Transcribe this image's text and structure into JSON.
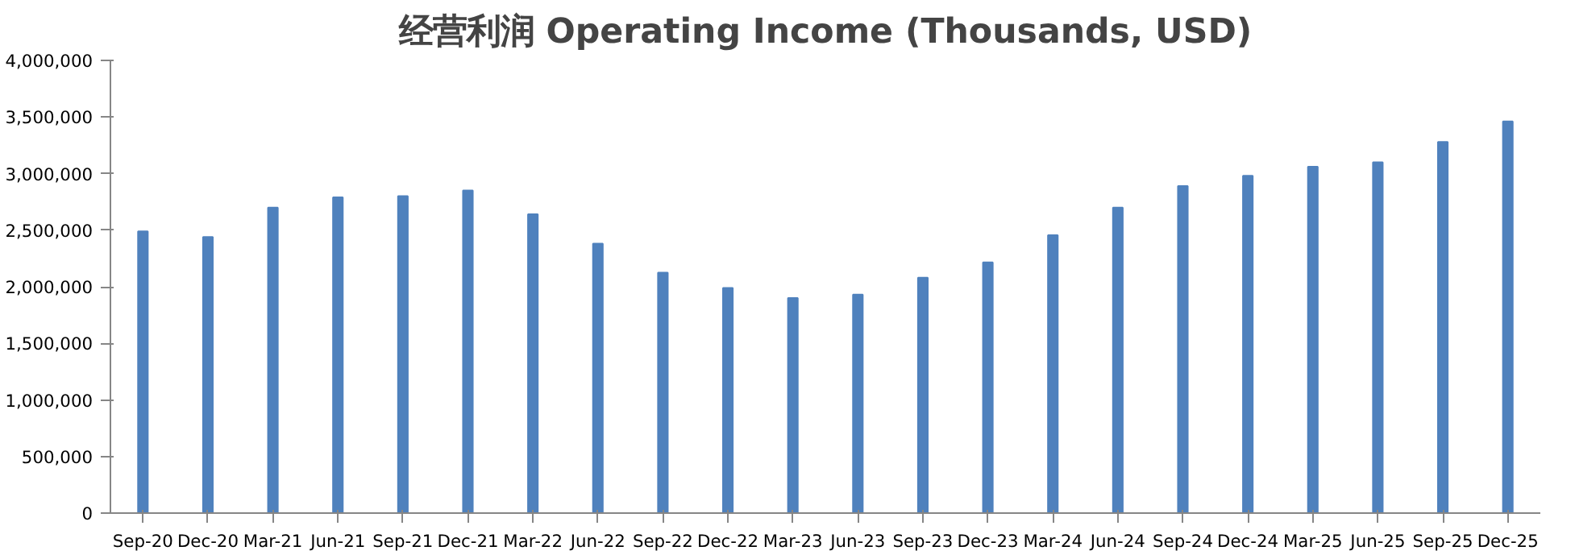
{
  "chart_data": {
    "type": "bar",
    "title": "经营利润 Operating Income (Thousands, USD)",
    "categories": [
      "Sep-20",
      "Dec-20",
      "Mar-21",
      "Jun-21",
      "Sep-21",
      "Dec-21",
      "Mar-22",
      "Jun-22",
      "Sep-22",
      "Dec-22",
      "Mar-23",
      "Jun-23",
      "Sep-23",
      "Dec-23",
      "Mar-24",
      "Jun-24",
      "Sep-24",
      "Dec-24",
      "Mar-25",
      "Jun-25",
      "Sep-25",
      "Dec-25"
    ],
    "values": [
      2490000,
      2440000,
      2700000,
      2790000,
      2800000,
      2850000,
      2640000,
      2380000,
      2125000,
      1990000,
      1900000,
      1930000,
      2080000,
      2215000,
      2455000,
      2700000,
      2890000,
      2980000,
      3060000,
      3100000,
      3280000,
      3460000
    ],
    "color": "#4f81bd",
    "ylim": [
      0,
      4000000
    ],
    "yticks": [
      {
        "value": 0,
        "label": "0"
      },
      {
        "value": 500000,
        "label": "500,000"
      },
      {
        "value": 1000000,
        "label": "1,000,000"
      },
      {
        "value": 1500000,
        "label": "1,500,000"
      },
      {
        "value": 2000000,
        "label": "2,000,000"
      },
      {
        "value": 2500000,
        "label": "2,500,000"
      },
      {
        "value": 3000000,
        "label": "3,000,000"
      },
      {
        "value": 3500000,
        "label": "3,500,000"
      },
      {
        "value": 4000000,
        "label": "4,000,000"
      }
    ],
    "grid": false
  }
}
